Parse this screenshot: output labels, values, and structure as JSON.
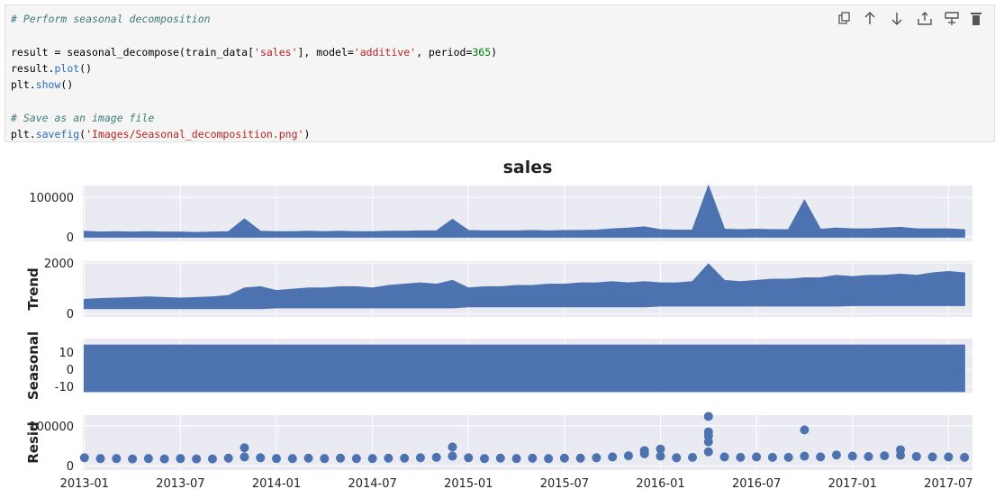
{
  "code": {
    "lines": [
      [
        {
          "text": "# Perform seasonal decomposition",
          "color": "#3d7b7b",
          "italic": true
        }
      ],
      [
        {
          "text": "result = seasonal_decompose(train_data[",
          "color": "#000000"
        },
        {
          "text": "'sales'",
          "color": "#ba2121"
        },
        {
          "text": "], model=",
          "color": "#000000"
        },
        {
          "text": "'additive'",
          "color": "#ba2121"
        },
        {
          "text": ", period=",
          "color": "#000000"
        },
        {
          "text": "365",
          "color": "#008000"
        },
        {
          "text": ")",
          "color": "#000000"
        }
      ],
      [
        {
          "text": "result.",
          "color": "#000000"
        },
        {
          "text": "plot",
          "color": "#2a6cb8"
        },
        {
          "text": "()",
          "color": "#000000"
        }
      ],
      [
        {
          "text": "plt.",
          "color": "#000000"
        },
        {
          "text": "show",
          "color": "#2a6cb8"
        },
        {
          "text": "()",
          "color": "#000000"
        }
      ],
      [
        {
          "text": "# Save as an image file",
          "color": "#3d7b7b",
          "italic": true
        }
      ],
      [
        {
          "text": "plt.",
          "color": "#000000"
        },
        {
          "text": "savefig",
          "color": "#2a6cb8"
        },
        {
          "text": "(",
          "color": "#000000"
        },
        {
          "text": "'Images/Seasonal_decomposition.png'",
          "color": "#ba2121"
        },
        {
          "text": ")",
          "color": "#000000"
        }
      ]
    ]
  },
  "chart_data": [
    {
      "type": "area",
      "title": "sales",
      "color": "#4c72b0",
      "grid": true,
      "x": [
        "2013-01",
        "2013-02",
        "2013-03",
        "2013-04",
        "2013-05",
        "2013-06",
        "2013-07",
        "2013-08",
        "2013-09",
        "2013-10",
        "2013-11",
        "2013-12",
        "2014-01",
        "2014-02",
        "2014-03",
        "2014-04",
        "2014-05",
        "2014-06",
        "2014-07",
        "2014-08",
        "2014-09",
        "2014-10",
        "2014-11",
        "2014-12",
        "2015-01",
        "2015-02",
        "2015-03",
        "2015-04",
        "2015-05",
        "2015-06",
        "2015-07",
        "2015-08",
        "2015-09",
        "2015-10",
        "2015-11",
        "2015-12",
        "2016-01",
        "2016-02",
        "2016-03",
        "2016-04",
        "2016-05",
        "2016-06",
        "2016-07",
        "2016-08",
        "2016-09",
        "2016-10",
        "2016-11",
        "2016-12",
        "2017-01",
        "2017-02",
        "2017-03",
        "2017-04",
        "2017-05",
        "2017-06",
        "2017-07",
        "2017-08"
      ],
      "values": [
        14000,
        12000,
        13000,
        12000,
        13000,
        12000,
        12000,
        11000,
        12000,
        13000,
        45000,
        14000,
        13000,
        13000,
        14000,
        13000,
        14000,
        13000,
        13000,
        14000,
        14000,
        15000,
        15000,
        44000,
        16000,
        15000,
        15000,
        15000,
        16000,
        15000,
        16000,
        16000,
        17000,
        20000,
        22000,
        25000,
        18000,
        17000,
        17000,
        128000,
        19000,
        18000,
        19000,
        18000,
        18000,
        92000,
        19000,
        22000,
        20000,
        20000,
        22000,
        24000,
        20000,
        20000,
        20000,
        18000
      ],
      "ylim": [
        -11000,
        130000
      ],
      "yticks": [
        0,
        100000
      ]
    },
    {
      "type": "band",
      "ylabel": "Trend",
      "color": "#4c72b0",
      "grid": true,
      "x": [
        "2013-01",
        "2013-02",
        "2013-03",
        "2013-04",
        "2013-05",
        "2013-06",
        "2013-07",
        "2013-08",
        "2013-09",
        "2013-10",
        "2013-11",
        "2013-12",
        "2014-01",
        "2014-02",
        "2014-03",
        "2014-04",
        "2014-05",
        "2014-06",
        "2014-07",
        "2014-08",
        "2014-09",
        "2014-10",
        "2014-11",
        "2014-12",
        "2015-01",
        "2015-02",
        "2015-03",
        "2015-04",
        "2015-05",
        "2015-06",
        "2015-07",
        "2015-08",
        "2015-09",
        "2015-10",
        "2015-11",
        "2015-12",
        "2016-01",
        "2016-02",
        "2016-03",
        "2016-04",
        "2016-05",
        "2016-06",
        "2016-07",
        "2016-08",
        "2016-09",
        "2016-10",
        "2016-11",
        "2016-12",
        "2017-01",
        "2017-02",
        "2017-03",
        "2017-04",
        "2017-05",
        "2017-06",
        "2017-07",
        "2017-08"
      ],
      "values": [
        550,
        580,
        600,
        620,
        650,
        620,
        600,
        620,
        650,
        700,
        1000,
        1050,
        900,
        950,
        1000,
        1000,
        1050,
        1050,
        1000,
        1100,
        1150,
        1200,
        1150,
        1300,
        1000,
        1050,
        1050,
        1100,
        1100,
        1150,
        1150,
        1200,
        1200,
        1250,
        1200,
        1250,
        1200,
        1200,
        1250,
        1950,
        1300,
        1250,
        1300,
        1350,
        1350,
        1400,
        1400,
        1500,
        1450,
        1500,
        1500,
        1550,
        1500,
        1600,
        1650,
        1600
      ],
      "lower_values": [
        200,
        200,
        200,
        200,
        200,
        200,
        200,
        200,
        200,
        200,
        200,
        200,
        230,
        230,
        230,
        230,
        230,
        230,
        230,
        230,
        230,
        230,
        230,
        230,
        270,
        270,
        270,
        270,
        270,
        270,
        270,
        270,
        270,
        270,
        270,
        270,
        300,
        300,
        300,
        300,
        300,
        300,
        300,
        300,
        300,
        300,
        300,
        300,
        320,
        320,
        320,
        320,
        320,
        320,
        320,
        320
      ],
      "ylim": [
        -140,
        2070
      ],
      "yticks": [
        0,
        2000
      ]
    },
    {
      "type": "band",
      "ylabel": "Seasonal",
      "color": "#4c72b0",
      "grid": true,
      "x": [
        "2013-01",
        "2013-02",
        "2013-03",
        "2013-04",
        "2013-05",
        "2013-06",
        "2013-07",
        "2013-08",
        "2013-09",
        "2013-10",
        "2013-11",
        "2013-12",
        "2014-01",
        "2014-02",
        "2014-03",
        "2014-04",
        "2014-05",
        "2014-06",
        "2014-07",
        "2014-08",
        "2014-09",
        "2014-10",
        "2014-11",
        "2014-12",
        "2015-01",
        "2015-02",
        "2015-03",
        "2015-04",
        "2015-05",
        "2015-06",
        "2015-07",
        "2015-08",
        "2015-09",
        "2015-10",
        "2015-11",
        "2015-12",
        "2016-01",
        "2016-02",
        "2016-03",
        "2016-04",
        "2016-05",
        "2016-06",
        "2016-07",
        "2016-08",
        "2016-09",
        "2016-10",
        "2016-11",
        "2016-12",
        "2017-01",
        "2017-02",
        "2017-03",
        "2017-04",
        "2017-05",
        "2017-06",
        "2017-07",
        "2017-08"
      ],
      "values": [
        14,
        14,
        14,
        14,
        14,
        14,
        14,
        14,
        14,
        14,
        14,
        14,
        14,
        14,
        14,
        14,
        14,
        14,
        14,
        14,
        14,
        14,
        14,
        14,
        14,
        14,
        14,
        14,
        14,
        14,
        14,
        14,
        14,
        14,
        14,
        14,
        14,
        14,
        14,
        14,
        14,
        14,
        14,
        14,
        14,
        14,
        14,
        14,
        14,
        14,
        14,
        14,
        14,
        14,
        14,
        14
      ],
      "lower_values": [
        -13,
        -13,
        -13,
        -13,
        -13,
        -13,
        -13,
        -13,
        -13,
        -13,
        -13,
        -13,
        -13,
        -13,
        -13,
        -13,
        -13,
        -13,
        -13,
        -13,
        -13,
        -13,
        -13,
        -13,
        -13,
        -13,
        -13,
        -13,
        -13,
        -13,
        -13,
        -13,
        -13,
        -13,
        -13,
        -13,
        -13,
        -13,
        -13,
        -13,
        -13,
        -13,
        -13,
        -13,
        -13,
        -13,
        -13,
        -13,
        -13,
        -13,
        -13,
        -13,
        -13,
        -13,
        -13,
        -13
      ],
      "ylim": [
        -13.7,
        17.9
      ],
      "yticks": [
        -10,
        0,
        10
      ]
    },
    {
      "type": "scatter",
      "ylabel": "Resid",
      "color": "#4c72b0",
      "grid": true,
      "x": [
        "2013-01",
        "2013-02",
        "2013-03",
        "2013-04",
        "2013-05",
        "2013-06",
        "2013-07",
        "2013-08",
        "2013-09",
        "2013-10",
        "2013-11",
        "2013-12",
        "2014-01",
        "2014-02",
        "2014-03",
        "2014-04",
        "2014-05",
        "2014-06",
        "2014-07",
        "2014-08",
        "2014-09",
        "2014-10",
        "2014-11",
        "2014-12",
        "2015-01",
        "2015-02",
        "2015-03",
        "2015-04",
        "2015-05",
        "2015-06",
        "2015-07",
        "2015-08",
        "2015-09",
        "2015-10",
        "2015-11",
        "2015-12",
        "2016-01",
        "2016-02",
        "2016-03",
        "2016-04",
        "2016-05",
        "2016-06",
        "2016-07",
        "2016-08",
        "2016-09",
        "2016-10",
        "2016-11",
        "2016-12",
        "2017-01",
        "2017-02",
        "2017-03",
        "2017-04",
        "2017-05",
        "2017-06",
        "2017-07",
        "2017-08",
        "2013-11",
        "2014-12",
        "2016-04",
        "2016-04",
        "2016-04",
        "2016-04",
        "2016-10",
        "2016-01",
        "2017-04",
        "2015-12"
      ],
      "values": [
        20000,
        18000,
        18000,
        17000,
        18000,
        17000,
        18000,
        17000,
        17000,
        19000,
        22000,
        20000,
        18000,
        18000,
        19000,
        18000,
        19000,
        18000,
        18000,
        19000,
        19000,
        20000,
        21000,
        24000,
        20000,
        18000,
        19000,
        18000,
        19000,
        18000,
        19000,
        19000,
        20000,
        22000,
        25000,
        30000,
        24000,
        20000,
        21000,
        35000,
        22000,
        21000,
        22000,
        21000,
        21000,
        24000,
        22000,
        27000,
        24000,
        23000,
        25000,
        26000,
        23000,
        22000,
        22000,
        21000,
        45000,
        47000,
        124000,
        85000,
        75000,
        60000,
        90000,
        42000,
        40000,
        38000
      ],
      "ylim": [
        -11000,
        127000
      ],
      "yticks": [
        0,
        100000
      ],
      "xlim": [
        "2013-01",
        "2017-08"
      ],
      "xticks": [
        "2013-01",
        "2013-07",
        "2014-01",
        "2014-07",
        "2015-01",
        "2015-07",
        "2016-01",
        "2016-07",
        "2017-01",
        "2017-07"
      ]
    }
  ]
}
